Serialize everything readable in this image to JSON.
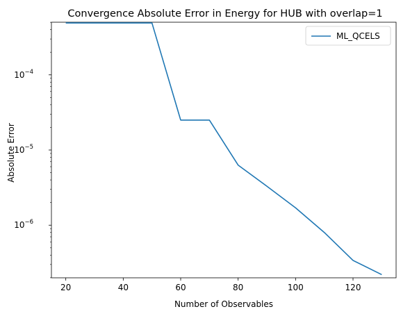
{
  "chart_data": {
    "type": "line",
    "title": "Convergence Absolute Error in Energy for HUB with overlap=1",
    "xlabel": "Number of Observables",
    "ylabel": "Absolute Error",
    "yscale": "log",
    "xlim": [
      15,
      135
    ],
    "ylim_log10": [
      -6.7,
      -3.3
    ],
    "xticks": [
      20,
      40,
      60,
      80,
      100,
      120
    ],
    "yticks": [
      {
        "base": "10",
        "exp": "−4",
        "log10": -4
      },
      {
        "base": "10",
        "exp": "−5",
        "log10": -5
      },
      {
        "base": "10",
        "exp": "−6",
        "log10": -6
      }
    ],
    "series": [
      {
        "name": "ML_QCELS",
        "color": "#1f77b4",
        "x": [
          20,
          30,
          40,
          50,
          60,
          70,
          80,
          90,
          100,
          110,
          120,
          130
        ],
        "y": [
          0.00049,
          0.00049,
          0.00049,
          0.00049,
          2.5e-05,
          2.5e-05,
          6.3e-06,
          3.3e-06,
          1.7e-06,
          8e-07,
          3.4e-07,
          2.2e-07
        ]
      }
    ],
    "grid": false,
    "legend_position": "top-right"
  }
}
